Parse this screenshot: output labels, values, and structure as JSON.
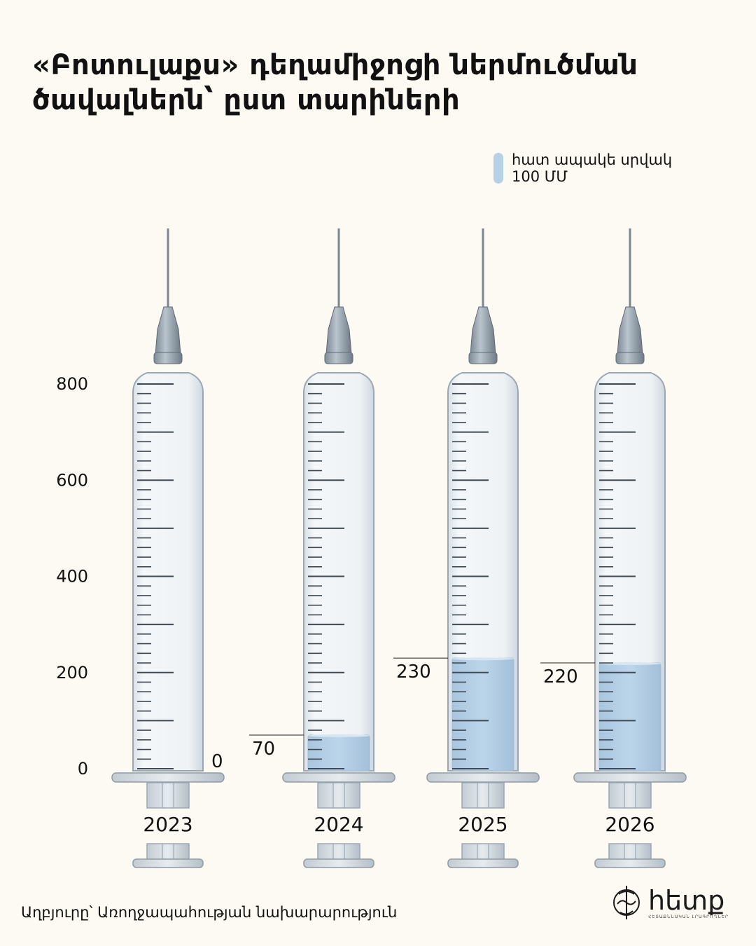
{
  "title": "«Բոտուլաքս» դեղամիջոցի ներմուծման ծավալներն՝ ըստ տարիների",
  "legend": {
    "line1": "հատ ապակե սրվակ",
    "line2": "100 ՄՄ",
    "color": "#b6d0e6"
  },
  "chart_data": {
    "type": "bar",
    "title": "«Բոտուլաքս» դեղամիջոցի ներմուծման ծավալներն՝ ըստ տարիների",
    "categories": [
      "2023",
      "2024",
      "2025",
      "2026"
    ],
    "series": [
      {
        "name": "հատ ապակե սրվակ 100 ՄՄ",
        "values": [
          0,
          70,
          230,
          220
        ]
      }
    ],
    "value_labels": [
      "0",
      "70",
      "230",
      "220"
    ],
    "ylim": [
      0,
      800
    ],
    "yticks": [
      0,
      200,
      400,
      600,
      800
    ],
    "ytick_labels": [
      "0",
      "200",
      "400",
      "600",
      "800"
    ],
    "xlabel": "",
    "ylabel": "",
    "grid": false,
    "legend_position": "top-right",
    "colors": {
      "fill": "#b6d0e6",
      "barrel": "#eef2f5",
      "outline": "#9aa7b2"
    }
  },
  "source": "Աղբյուրը՝ Առողջապահության նախարարություն",
  "brand": {
    "name": "հետք",
    "tagline": "ՀԵՏԱՔՆՆԱԿԱՆ ԼՐԱԳՐՈՂՆԵՐ"
  }
}
